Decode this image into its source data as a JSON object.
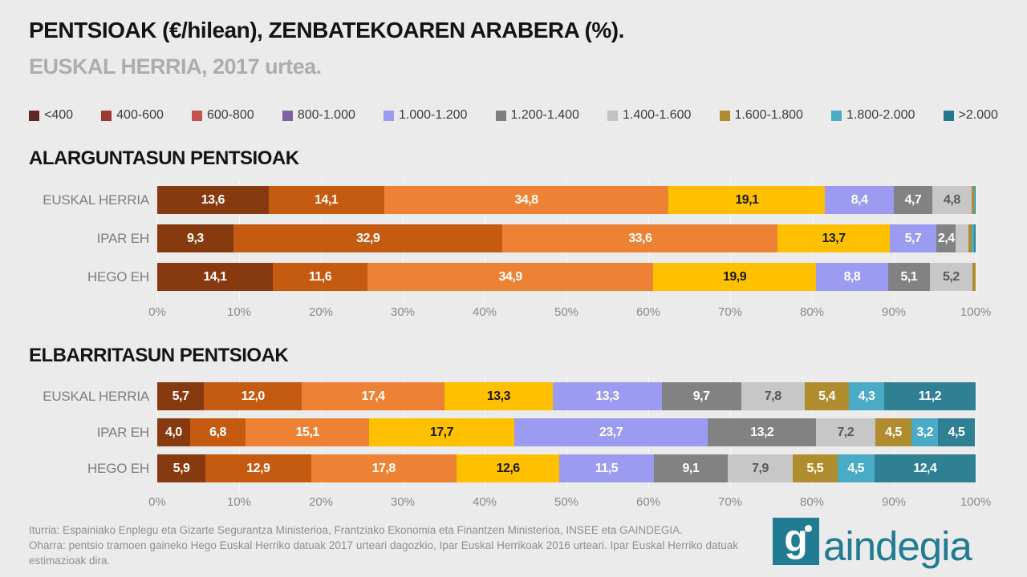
{
  "page": {
    "title": "PENTSIOAK (€/hilean), ZENBATEKOAREN ARABERA (%).",
    "subtitle": "EUSKAL HERRIA, 2017 urtea."
  },
  "legend": {
    "items": [
      {
        "label": "<400",
        "color": "#622723"
      },
      {
        "label": "400-600",
        "color": "#9E3A32"
      },
      {
        "label": "600-800",
        "color": "#C3514E"
      },
      {
        "label": "800-1.000",
        "color": "#7E63A1"
      },
      {
        "label": "1.000-1.200",
        "color": "#9B9BF2"
      },
      {
        "label": "1.200-1.400",
        "color": "#7F7F7F"
      },
      {
        "label": "1.400-1.600",
        "color": "#C2C2C2"
      },
      {
        "label": "1.600-1.800",
        "color": "#AF8D2E"
      },
      {
        "label": "1.800-2.000",
        "color": "#49ABC6"
      },
      {
        "label": ">2.000",
        "color": "#23798C"
      }
    ]
  },
  "palette": {
    "bar_colors": [
      "#873A0F",
      "#C55A11",
      "#EE8234",
      "#FFC000",
      "#9B9BF2",
      "#828282",
      "#C7C7C7",
      "#AF8D2E",
      "#49ABC6",
      "#2F8093"
    ],
    "text_colors": [
      "#FFFFFF",
      "#FFFFFF",
      "#FFFFFF",
      "#1A1A1A",
      "#FFFFFF",
      "#FFFFFF",
      "#595959",
      "#FFFFFF",
      "#FFFFFF",
      "#FFFFFF"
    ]
  },
  "chart_data": [
    {
      "type": "bar",
      "stacked": true,
      "orientation": "horizontal",
      "title": "ALARGUNTASUN PENTSIOAK",
      "unit": "%",
      "xlim": [
        0,
        100
      ],
      "grid": true,
      "segments": [
        "<400",
        "400-600",
        "600-800",
        "800-1.000",
        "1.000-1.200",
        "1.200-1.400",
        "1.400-1.600",
        "1.600-1.800",
        "1.800-2.000",
        ">2.000"
      ],
      "categories": [
        "EUSKAL HERRIA",
        "IPAR EH",
        "HEGO EH"
      ],
      "x_ticks": [
        "0%",
        "10%",
        "20%",
        "30%",
        "40%",
        "50%",
        "60%",
        "70%",
        "80%",
        "90%",
        "100%"
      ],
      "rows": [
        {
          "label": "EUSKAL HERRIA",
          "values": [
            13.6,
            14.1,
            34.8,
            19.1,
            8.4,
            4.7,
            4.8,
            0.3,
            0.1,
            0.1
          ],
          "labels": [
            "13,6",
            "14,1",
            "34,8",
            "19,1",
            "8,4",
            "4,7",
            "4,8",
            "",
            "",
            ""
          ]
        },
        {
          "label": "IPAR EH",
          "values": [
            9.3,
            32.9,
            33.6,
            13.7,
            5.7,
            2.4,
            1.5,
            0.4,
            0.3,
            0.2
          ],
          "labels": [
            "9,3",
            "32,9",
            "33,6",
            "13,7",
            "5,7",
            "2,4",
            "",
            "",
            "",
            ""
          ]
        },
        {
          "label": "HEGO EH",
          "values": [
            14.1,
            11.6,
            34.9,
            19.9,
            8.8,
            5.1,
            5.2,
            0.4,
            0,
            0
          ],
          "labels": [
            "14,1",
            "11,6",
            "34,9",
            "19,9",
            "8,8",
            "5,1",
            "5,2",
            "",
            "",
            ""
          ]
        }
      ]
    },
    {
      "type": "bar",
      "stacked": true,
      "orientation": "horizontal",
      "title": "ELBARRITASUN PENTSIOAK",
      "unit": "%",
      "xlim": [
        0,
        100
      ],
      "grid": true,
      "segments": [
        "<400",
        "400-600",
        "600-800",
        "800-1.000",
        "1.000-1.200",
        "1.200-1.400",
        "1.400-1.600",
        "1.600-1.800",
        "1.800-2.000",
        ">2.000"
      ],
      "categories": [
        "EUSKAL HERRIA",
        "IPAR EH",
        "HEGO EH"
      ],
      "x_ticks": [
        "0%",
        "10%",
        "20%",
        "30%",
        "40%",
        "50%",
        "60%",
        "70%",
        "80%",
        "90%",
        "100%"
      ],
      "rows": [
        {
          "label": "EUSKAL HERRIA",
          "values": [
            5.7,
            12.0,
            17.4,
            13.3,
            13.3,
            9.7,
            7.8,
            5.4,
            4.3,
            11.2
          ],
          "labels": [
            "5,7",
            "12,0",
            "17,4",
            "13,3",
            "13,3",
            "9,7",
            "7,8",
            "5,4",
            "4,3",
            "11,2"
          ]
        },
        {
          "label": "IPAR EH",
          "values": [
            4.0,
            6.8,
            15.1,
            17.7,
            23.7,
            13.2,
            7.2,
            4.5,
            3.2,
            4.5
          ],
          "labels": [
            "4,0",
            "6,8",
            "15,1",
            "17,7",
            "23,7",
            "13,2",
            "7,2",
            "4,5",
            "3,2",
            "4,5"
          ]
        },
        {
          "label": "HEGO EH",
          "values": [
            5.9,
            12.9,
            17.8,
            12.6,
            11.5,
            9.1,
            7.9,
            5.5,
            4.5,
            12.4
          ],
          "labels": [
            "5,9",
            "12,9",
            "17,8",
            "12,6",
            "11,5",
            "9,1",
            "7,9",
            "5,5",
            "4,5",
            "12,4"
          ]
        }
      ]
    }
  ],
  "footer": {
    "source": "Iturria: Espainiako Enplegu eta Gizarte Segurantza Ministerioa, Frantziako Ekonomia eta Finantzen Ministerioa, INSEE eta GAINDEGIA.",
    "note": "Oharra: pentsio tramoen gaineko Hego Euskal Herriko datuak 2017 urteari dagozkio, Ipar Euskal Herrikoak 2016 urteari. Ipar Euskal Herriko datuak estimazioak dira."
  },
  "logo": {
    "initial": "g",
    "rest": "aindegia",
    "color": "#217B93"
  }
}
